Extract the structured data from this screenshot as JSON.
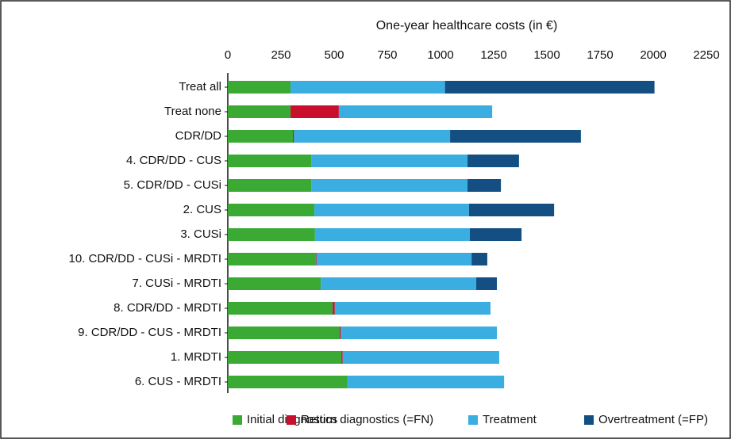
{
  "chart_data": {
    "type": "stacked-hbar",
    "title": "One-year healthcare costs (in €)",
    "categories": [
      "Treat all",
      "Treat none",
      "CDR/DD",
      "4. CDR/DD - CUS",
      "5. CDR/DD - CUSi",
      "2. CUS",
      "3. CUSi",
      "10. CDR/DD - CUSi - MRDTI",
      "7. CUSi - MRDTI",
      "8. CDR/DD - MRDTI",
      "9. CDR/DD - CUS - MRDTI",
      "1. MRDTI",
      "6. CUS - MRDTI"
    ],
    "series": [
      {
        "name": "Initial diagnostics",
        "color": "#3aaa35",
        "values": [
          295,
          295,
          306,
          392,
          392,
          407,
          410,
          414,
          437,
          493,
          526,
          534,
          563
        ]
      },
      {
        "name": "Return diagnostics (=FN)",
        "color": "#c8102e",
        "values": [
          0,
          227,
          5,
          0,
          0,
          0,
          0,
          3,
          0,
          10,
          5,
          6,
          0
        ]
      },
      {
        "name": "Treatment",
        "color": "#3aaee0",
        "values": [
          726,
          721,
          734,
          735,
          735,
          727,
          728,
          729,
          731,
          732,
          734,
          736,
          736
        ]
      },
      {
        "name": "Overtreatment (=FP)",
        "color": "#134f82",
        "values": [
          985,
          0,
          615,
          242,
          157,
          400,
          243,
          74,
          97,
          0,
          0,
          0,
          0
        ]
      }
    ],
    "xlim": [
      0,
      2250
    ],
    "xticks": [
      0,
      250,
      500,
      750,
      1000,
      1250,
      1500,
      1750,
      2000,
      2250
    ],
    "legend": "bottom"
  }
}
